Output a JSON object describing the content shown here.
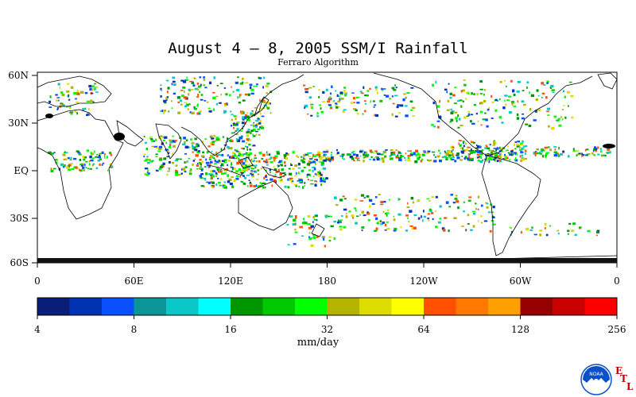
{
  "title": "August 4 – 8, 2005 SSM/I Rainfall",
  "subtitle": "Ferraro Algorithm",
  "map": {
    "lat_labels": [
      "60N",
      "30N",
      "EQ",
      "30S",
      "60S"
    ],
    "lon_labels": [
      "0",
      "60E",
      "120E",
      "180",
      "120W",
      "60W",
      "0"
    ]
  },
  "legend": {
    "units": "mm/day",
    "tick_labels": [
      "4",
      "8",
      "16",
      "32",
      "64",
      "128",
      "256"
    ],
    "colors": [
      "#0a1e78",
      "#0032b4",
      "#0a50ff",
      "#0a9696",
      "#0ac8c8",
      "#00ffff",
      "#009600",
      "#00c800",
      "#00ff00",
      "#b4b400",
      "#dcdc00",
      "#ffff00",
      "#ff5000",
      "#ff7800",
      "#ffa000",
      "#960000",
      "#c80000",
      "#ff0000"
    ]
  },
  "logo": {
    "icon": "noaa-logo-icon",
    "text": "NOAA",
    "etl": [
      "E",
      "T",
      "L"
    ]
  }
}
